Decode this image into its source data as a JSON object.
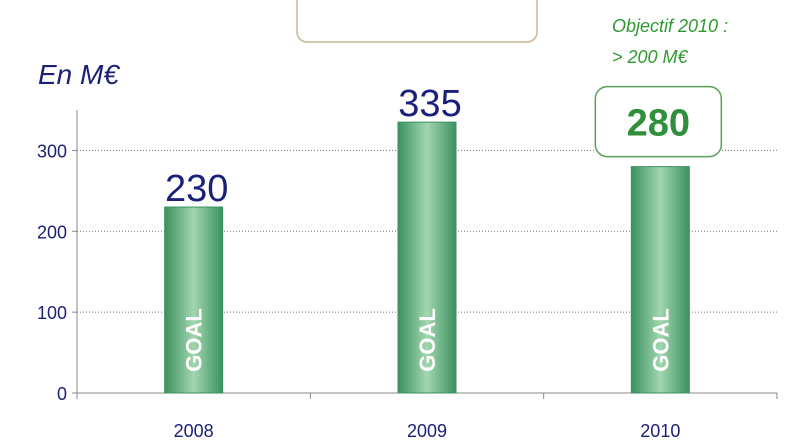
{
  "chart_data": {
    "type": "bar",
    "y_label": "En M€",
    "annotation": [
      "Objectif  2010 :",
      "> 200 M€"
    ],
    "categories": [
      "2008",
      "2009",
      "2010"
    ],
    "values": [
      230,
      335,
      280
    ],
    "bar_text": "GOAL",
    "color": "#3b9160",
    "label_colors": [
      "#1a1f7a",
      "#1a1f7a",
      "#2f8f3a"
    ],
    "boxed_labels": [
      false,
      false,
      true
    ],
    "ylim": [
      0,
      350
    ],
    "yticks": [
      0,
      100,
      200,
      300
    ],
    "grid": true
  }
}
